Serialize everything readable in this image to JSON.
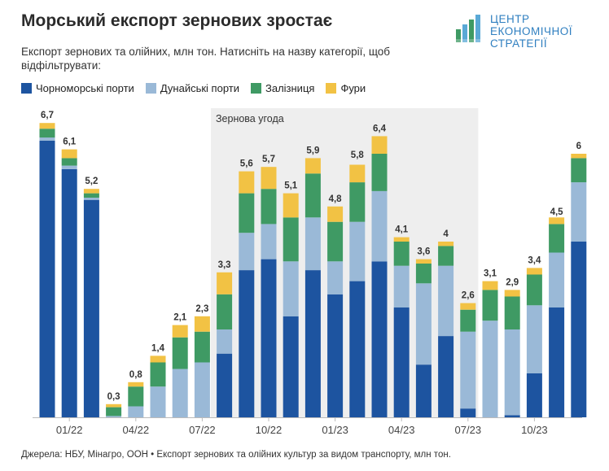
{
  "header": {
    "title": "Морський експорт зернових зростає",
    "subtitle": "Експорт зернових та олійних, млн тон. Натисніть на назву категорії, щоб відфільтрувати:"
  },
  "logo": {
    "line1": "ЦЕНТР",
    "line2": "ЕКОНОМІЧНОЇ",
    "line3": "СТРАТЕГІЇ"
  },
  "source": "Джерела: НБУ, Мінагро, ООН • Експорт зернових та олійних культур за видом транспорту, млн тон.",
  "colors": {
    "black_sea": "#1d54a0",
    "danube": "#9ab9d7",
    "rail": "#3f9a64",
    "trucks": "#f2c244",
    "highlight": "#eeeeee",
    "axis": "#bbbbbb"
  },
  "chart_data": {
    "type": "bar",
    "stacked": true,
    "title": "Морський експорт зернових зростає",
    "ylabel": "млн тон",
    "ylim": [
      0,
      7
    ],
    "legend": [
      {
        "key": "black_sea",
        "label": "Чорноморські порти"
      },
      {
        "key": "danube",
        "label": "Дунайські порти"
      },
      {
        "key": "rail",
        "label": "Залізниця"
      },
      {
        "key": "trucks",
        "label": "Фури"
      }
    ],
    "x_tick_labels": [
      "01/22",
      "04/22",
      "07/22",
      "10/22",
      "01/23",
      "04/23",
      "07/23",
      "10/23"
    ],
    "x_tick_index": [
      1,
      4,
      7,
      10,
      13,
      16,
      19,
      22
    ],
    "annotation": {
      "label": "Зернова угода",
      "from_index": 8,
      "to_index": 19
    },
    "totals": [
      6.7,
      6.1,
      5.2,
      0.3,
      0.8,
      1.4,
      2.1,
      2.3,
      3.3,
      5.6,
      5.7,
      5.1,
      5.9,
      4.8,
      5.8,
      6.4,
      4.1,
      3.6,
      4.0,
      2.6,
      3.1,
      2.9,
      3.4,
      4.5,
      6.0
    ],
    "total_labels": [
      "6,7",
      "6,1",
      "5,2",
      "0,3",
      "0,8",
      "1,4",
      "2,1",
      "2,3",
      "3,3",
      "5,6",
      "5,7",
      "5,1",
      "5,9",
      "4,8",
      "5,8",
      "6,4",
      "4,1",
      "3,6",
      "4",
      "2,6",
      "3,1",
      "2,9",
      "3,4",
      "4,5",
      "6"
    ],
    "series": [
      {
        "key": "black_sea",
        "name": "Чорноморські порти",
        "values": [
          6.3,
          5.65,
          4.95,
          0.0,
          0.0,
          0.0,
          0.0,
          0.0,
          1.45,
          3.35,
          3.6,
          2.3,
          3.35,
          2.8,
          3.1,
          3.55,
          2.5,
          1.2,
          1.85,
          0.2,
          0.0,
          0.05,
          1.0,
          2.5,
          4.0
        ]
      },
      {
        "key": "danube",
        "name": "Дунайські порти",
        "values": [
          0.07,
          0.08,
          0.05,
          0.03,
          0.25,
          0.7,
          1.1,
          1.25,
          0.55,
          0.85,
          0.8,
          1.25,
          1.2,
          0.75,
          1.35,
          1.6,
          0.95,
          1.85,
          1.6,
          1.75,
          2.2,
          1.95,
          1.55,
          1.25,
          1.35
        ]
      },
      {
        "key": "rail",
        "name": "Залізниця",
        "values": [
          0.2,
          0.17,
          0.1,
          0.2,
          0.45,
          0.55,
          0.72,
          0.7,
          0.8,
          0.9,
          0.8,
          1.0,
          1.0,
          0.9,
          0.9,
          0.85,
          0.55,
          0.45,
          0.45,
          0.5,
          0.7,
          0.75,
          0.7,
          0.65,
          0.55
        ]
      },
      {
        "key": "trucks",
        "name": "Фури",
        "values": [
          0.13,
          0.2,
          0.1,
          0.07,
          0.1,
          0.15,
          0.28,
          0.35,
          0.5,
          0.5,
          0.5,
          0.55,
          0.35,
          0.35,
          0.4,
          0.4,
          0.1,
          0.1,
          0.1,
          0.15,
          0.2,
          0.15,
          0.15,
          0.15,
          0.1
        ]
      }
    ]
  }
}
